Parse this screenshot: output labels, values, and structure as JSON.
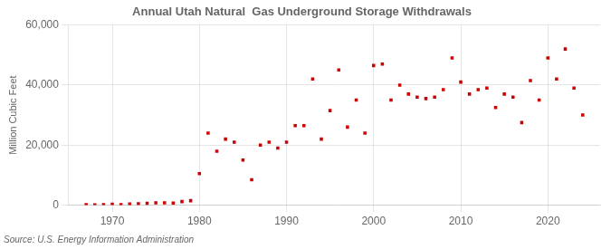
{
  "chart_data": {
    "type": "scatter",
    "title": "Annual Utah Natural  Gas Underground Storage Withdrawals",
    "ylabel": "Million Cubic Feet",
    "annotation": "Source: U.S. Energy Information Administration",
    "color": "#cc0000",
    "marker": "square",
    "x": [
      1967,
      1968,
      1969,
      1970,
      1971,
      1972,
      1973,
      1974,
      1975,
      1976,
      1977,
      1978,
      1979,
      1980,
      1981,
      1982,
      1983,
      1984,
      1985,
      1986,
      1987,
      1988,
      1989,
      1990,
      1991,
      1992,
      1993,
      1994,
      1995,
      1996,
      1997,
      1998,
      1999,
      2000,
      2001,
      2002,
      2003,
      2004,
      2005,
      2006,
      2007,
      2008,
      2009,
      2010,
      2011,
      2012,
      2013,
      2014,
      2015,
      2016,
      2017,
      2018,
      2019,
      2020,
      2021,
      2022,
      2023,
      2024
    ],
    "values": [
      200,
      100,
      200,
      300,
      200,
      400,
      500,
      600,
      800,
      800,
      700,
      1200,
      1500,
      10500,
      24000,
      18000,
      22000,
      21000,
      15000,
      8500,
      20000,
      21000,
      19000,
      21000,
      26500,
      26500,
      42000,
      22000,
      31500,
      45000,
      26000,
      35000,
      24000,
      46500,
      47000,
      35000,
      40000,
      37000,
      36000,
      35500,
      36000,
      38500,
      49000,
      41000,
      37000,
      38500,
      39000,
      32500,
      37000,
      36000,
      27500,
      41500,
      35000,
      49000,
      42000,
      52000,
      39000,
      30000
    ],
    "xlim": [
      1965,
      2026
    ],
    "xticks": [
      1970,
      1980,
      1990,
      2000,
      2010,
      2020
    ],
    "ylim": [
      0,
      60000
    ],
    "yticks": [
      0,
      {
        "value": 20000,
        "label": "20,000"
      },
      {
        "value": 40000,
        "label": "40,000"
      },
      {
        "value": 60000,
        "label": "60,000"
      }
    ],
    "grid": true,
    "legend": false
  }
}
